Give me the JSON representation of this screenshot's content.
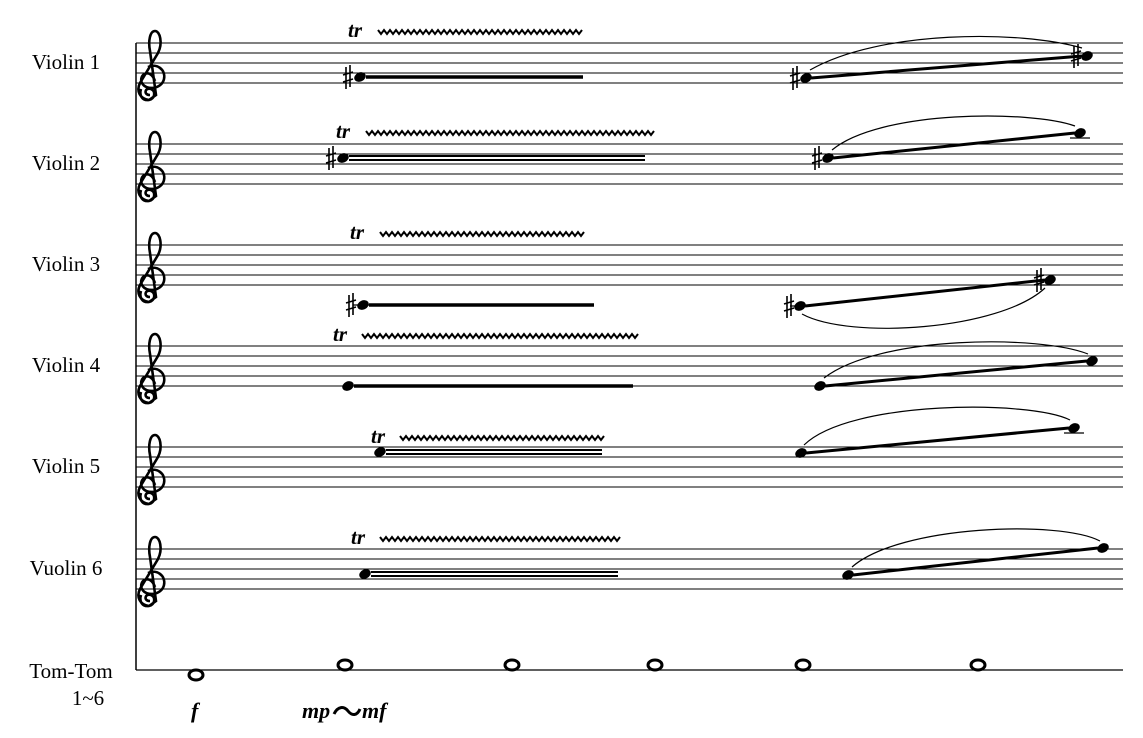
{
  "staves": [
    {
      "name": "Violin 1",
      "trill": "tr"
    },
    {
      "name": "Violin 2",
      "trill": "tr"
    },
    {
      "name": "Violin 3",
      "trill": "tr"
    },
    {
      "name": "Violin 4",
      "trill": "tr"
    },
    {
      "name": "Violin 5",
      "trill": "tr"
    },
    {
      "name": "Vuolin 6",
      "trill": "tr"
    }
  ],
  "percussion": {
    "name": "Tom-Tom",
    "range": "1~6"
  },
  "dynamics": [
    "f",
    "mp",
    "mf"
  ]
}
